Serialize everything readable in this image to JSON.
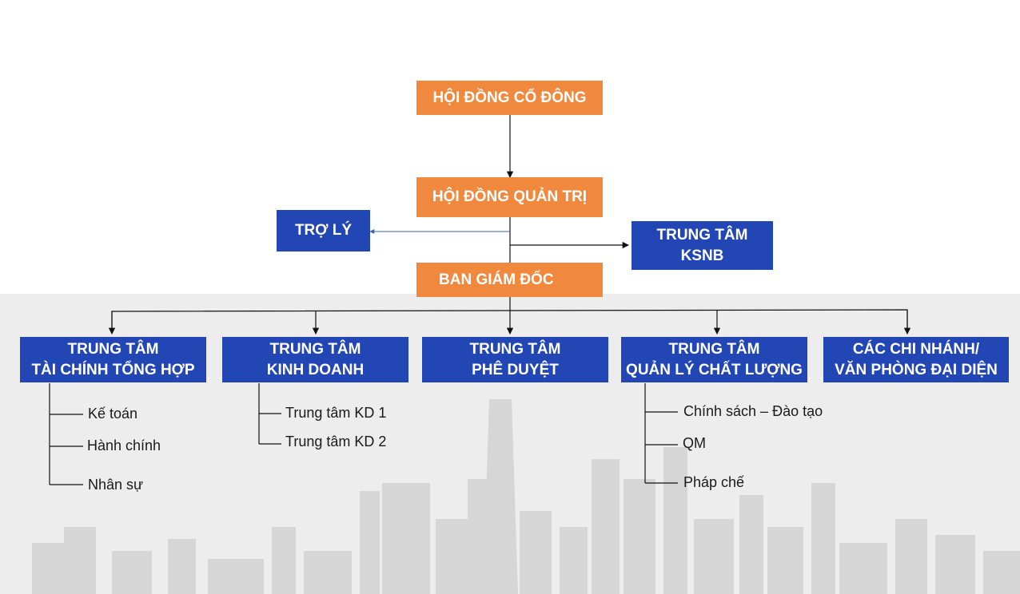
{
  "colors": {
    "orange": "#f0883e",
    "blue": "#2346b5",
    "line": "#111111",
    "backdrop": "#ececec"
  },
  "top": {
    "shareholders": "HỘI ĐỒNG CỔ ĐÔNG",
    "board": "HỘI ĐỒNG QUẢN TRỊ",
    "assistant": "TRỢ LÝ",
    "ksnb": "TRUNG TÂM\nKSNB",
    "management": "BAN GIÁM ĐỐC"
  },
  "departments": [
    {
      "label": "TRUNG TÂM\nTÀI CHÍNH TỔNG HỢP",
      "children": [
        "Kế toán",
        "Hành chính",
        "Nhân sự"
      ]
    },
    {
      "label": "TRUNG TÂM\nKINH DOANH",
      "children": [
        "Trung tâm KD 1",
        "Trung tâm KD 2"
      ]
    },
    {
      "label": "TRUNG TÂM\nPHÊ DUYỆT",
      "children": []
    },
    {
      "label": "TRUNG TÂM\nQUẢN LÝ CHẤT LƯỢNG",
      "children": [
        "Chính sách – Đào tạo",
        "QM",
        "Pháp chế"
      ]
    },
    {
      "label": "CÁC CHI NHÁNH/\nVĂN PHÒNG ĐẠI DIỆN",
      "children": []
    }
  ]
}
